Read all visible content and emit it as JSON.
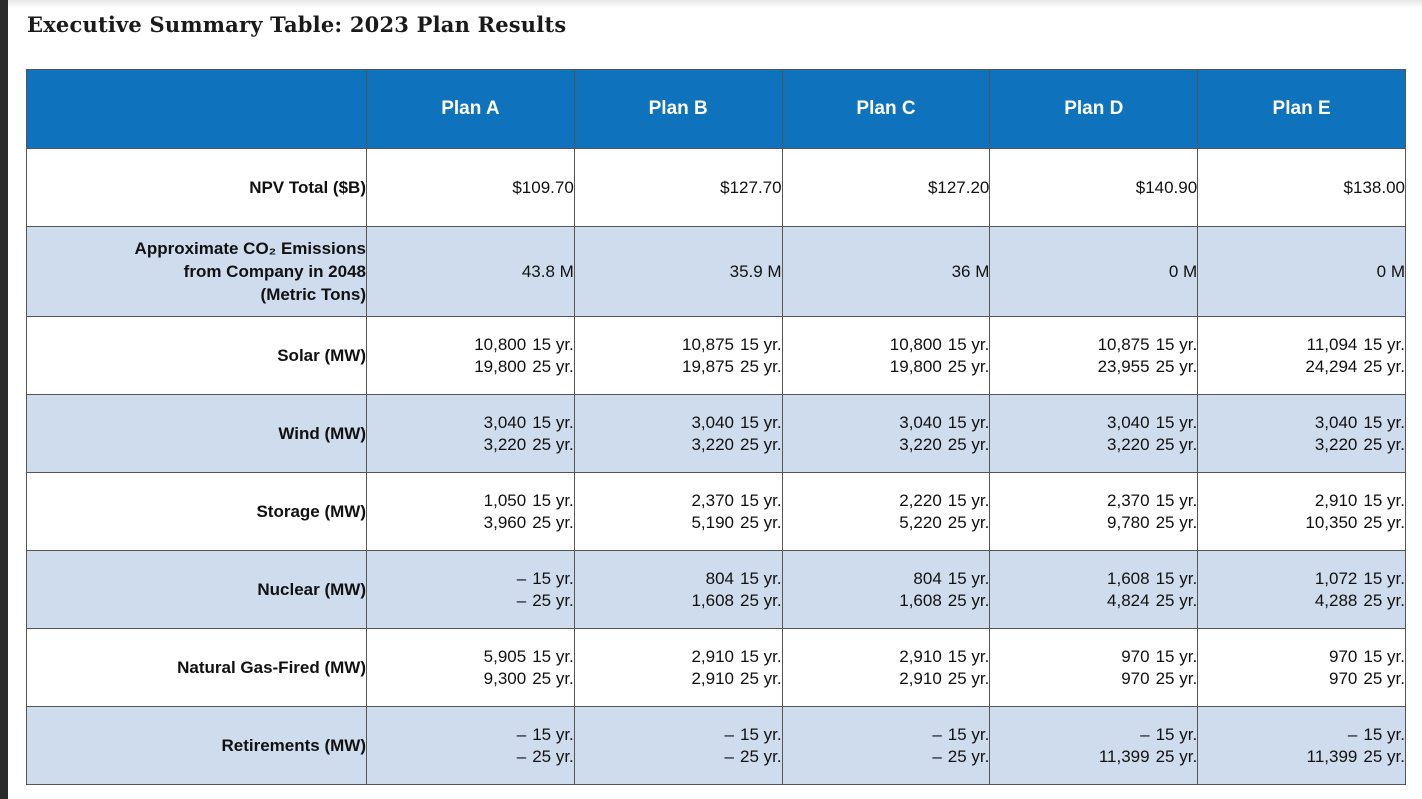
{
  "title": "Executive Summary Table: 2023 Plan Results",
  "columns": [
    "Plan A",
    "Plan B",
    "Plan C",
    "Plan D",
    "Plan E"
  ],
  "rows": [
    {
      "label": "NPV Total ($B)",
      "values": [
        "$109.70",
        "$127.70",
        "$127.20",
        "$140.90",
        "$138.00"
      ]
    },
    {
      "label_lines": [
        "Approximate CO₂ Emissions",
        "from Company in 2048",
        "(Metric Tons)"
      ],
      "values": [
        "43.8 M",
        "35.9 M",
        "36 M",
        "0 M",
        "0 M"
      ]
    },
    {
      "label": "Solar (MW)",
      "cells": [
        [
          {
            "amount": "10,800",
            "period": "15 yr."
          },
          {
            "amount": "19,800",
            "period": "25 yr."
          }
        ],
        [
          {
            "amount": "10,875",
            "period": "15 yr."
          },
          {
            "amount": "19,875",
            "period": "25 yr."
          }
        ],
        [
          {
            "amount": "10,800",
            "period": "15 yr."
          },
          {
            "amount": "19,800",
            "period": "25 yr."
          }
        ],
        [
          {
            "amount": "10,875",
            "period": "15 yr."
          },
          {
            "amount": "23,955",
            "period": "25 yr."
          }
        ],
        [
          {
            "amount": "11,094",
            "period": "15 yr."
          },
          {
            "amount": "24,294",
            "period": "25 yr."
          }
        ]
      ]
    },
    {
      "label": "Wind (MW)",
      "cells": [
        [
          {
            "amount": "3,040",
            "period": "15 yr."
          },
          {
            "amount": "3,220",
            "period": "25 yr."
          }
        ],
        [
          {
            "amount": "3,040",
            "period": "15 yr."
          },
          {
            "amount": "3,220",
            "period": "25 yr."
          }
        ],
        [
          {
            "amount": "3,040",
            "period": "15 yr."
          },
          {
            "amount": "3,220",
            "period": "25 yr."
          }
        ],
        [
          {
            "amount": "3,040",
            "period": "15 yr."
          },
          {
            "amount": "3,220",
            "period": "25 yr."
          }
        ],
        [
          {
            "amount": "3,040",
            "period": "15 yr."
          },
          {
            "amount": "3,220",
            "period": "25 yr."
          }
        ]
      ]
    },
    {
      "label": "Storage (MW)",
      "cells": [
        [
          {
            "amount": "1,050",
            "period": "15 yr."
          },
          {
            "amount": "3,960",
            "period": "25 yr."
          }
        ],
        [
          {
            "amount": "2,370",
            "period": "15 yr."
          },
          {
            "amount": "5,190",
            "period": "25 yr."
          }
        ],
        [
          {
            "amount": "2,220",
            "period": "15 yr."
          },
          {
            "amount": "5,220",
            "period": "25 yr."
          }
        ],
        [
          {
            "amount": "2,370",
            "period": "15 yr."
          },
          {
            "amount": "9,780",
            "period": "25 yr."
          }
        ],
        [
          {
            "amount": "2,910",
            "period": "15 yr."
          },
          {
            "amount": "10,350",
            "period": "25 yr."
          }
        ]
      ]
    },
    {
      "label": "Nuclear (MW)",
      "cells": [
        [
          {
            "amount": "–",
            "period": "15 yr."
          },
          {
            "amount": "–",
            "period": "25 yr."
          }
        ],
        [
          {
            "amount": "804",
            "period": "15 yr."
          },
          {
            "amount": "1,608",
            "period": "25 yr."
          }
        ],
        [
          {
            "amount": "804",
            "period": "15 yr."
          },
          {
            "amount": "1,608",
            "period": "25 yr."
          }
        ],
        [
          {
            "amount": "1,608",
            "period": "15 yr."
          },
          {
            "amount": "4,824",
            "period": "25 yr."
          }
        ],
        [
          {
            "amount": "1,072",
            "period": "15 yr."
          },
          {
            "amount": "4,288",
            "period": "25 yr."
          }
        ]
      ]
    },
    {
      "label": "Natural Gas-Fired (MW)",
      "cells": [
        [
          {
            "amount": "5,905",
            "period": "15 yr."
          },
          {
            "amount": "9,300",
            "period": "25 yr."
          }
        ],
        [
          {
            "amount": "2,910",
            "period": "15 yr."
          },
          {
            "amount": "2,910",
            "period": "25 yr."
          }
        ],
        [
          {
            "amount": "2,910",
            "period": "15 yr."
          },
          {
            "amount": "2,910",
            "period": "25 yr."
          }
        ],
        [
          {
            "amount": "970",
            "period": "15 yr."
          },
          {
            "amount": "970",
            "period": "25 yr."
          }
        ],
        [
          {
            "amount": "970",
            "period": "15 yr."
          },
          {
            "amount": "970",
            "period": "25 yr."
          }
        ]
      ]
    },
    {
      "label": "Retirements (MW)",
      "cells": [
        [
          {
            "amount": "–",
            "period": "15 yr."
          },
          {
            "amount": "–",
            "period": "25 yr."
          }
        ],
        [
          {
            "amount": "–",
            "period": "15 yr."
          },
          {
            "amount": "–",
            "period": "25 yr."
          }
        ],
        [
          {
            "amount": "–",
            "period": "15 yr."
          },
          {
            "amount": "–",
            "period": "25 yr."
          }
        ],
        [
          {
            "amount": "–",
            "period": "15 yr."
          },
          {
            "amount": "11,399",
            "period": "25 yr."
          }
        ],
        [
          {
            "amount": "–",
            "period": "15 yr."
          },
          {
            "amount": "11,399",
            "period": "25 yr."
          }
        ]
      ]
    }
  ],
  "colors": {
    "header_bg": "#0f72bd",
    "header_text": "#ffffff",
    "alt_row_bg": "#cfdcee",
    "row_bg": "#ffffff",
    "border": "#555555"
  }
}
